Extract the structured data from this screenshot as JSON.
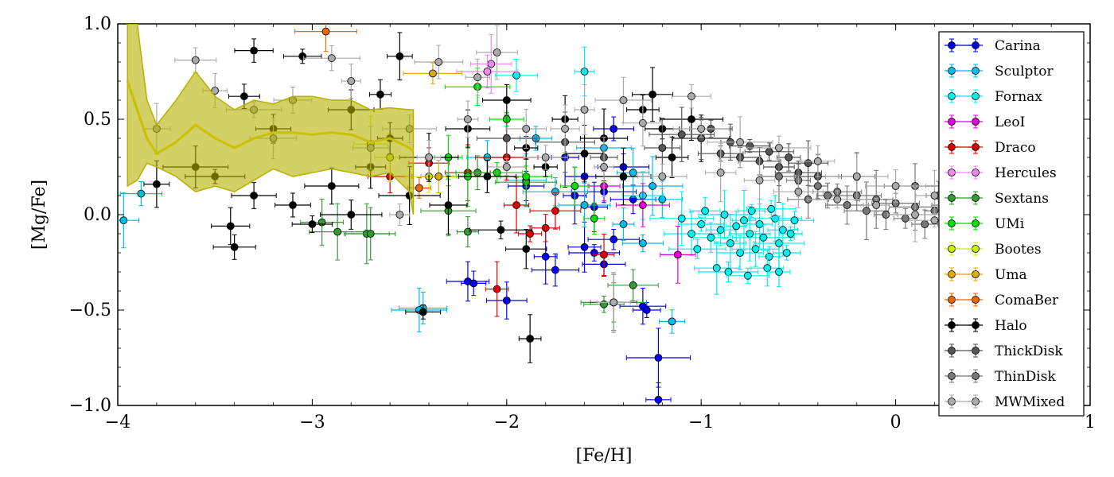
{
  "chart_data": {
    "type": "scatter",
    "title": "",
    "xlabel": "[Fe/H]",
    "ylabel": "[Mg/Fe]",
    "xlim": [
      -4,
      1
    ],
    "ylim": [
      -1.0,
      1.0
    ],
    "x_ticks": [
      -4,
      -3,
      -2,
      -1,
      0,
      1
    ],
    "x_tick_labels": [
      "−4",
      "−3",
      "−2",
      "−1",
      "0",
      "1"
    ],
    "y_ticks": [
      -1.0,
      -0.5,
      0.0,
      0.5,
      1.0
    ],
    "y_tick_labels": [
      "−1.0",
      "−0.5",
      "0.0",
      "0.5",
      "1.0"
    ],
    "grid": false,
    "legend_position": "right",
    "series": [
      {
        "name": "Carina",
        "color": "#0000ee",
        "points": [
          [
            -2.2,
            -0.35
          ],
          [
            -2.17,
            -0.36
          ],
          [
            -2.0,
            -0.45
          ],
          [
            -1.8,
            -0.22
          ],
          [
            -1.75,
            -0.29
          ],
          [
            -1.6,
            -0.17
          ],
          [
            -1.55,
            -0.2
          ],
          [
            -1.5,
            -0.26
          ],
          [
            -1.45,
            -0.13
          ],
          [
            -1.3,
            -0.48
          ],
          [
            -1.28,
            -0.5
          ],
          [
            -1.22,
            -0.75
          ],
          [
            -1.22,
            -0.97
          ],
          [
            -1.5,
            0.12
          ],
          [
            -1.6,
            0.2
          ],
          [
            -1.4,
            0.25
          ],
          [
            -1.7,
            0.3
          ],
          [
            -1.45,
            0.45
          ],
          [
            -1.35,
            0.08
          ],
          [
            -1.55,
            0.04
          ],
          [
            -1.9,
            0.15
          ],
          [
            -1.65,
            0.1
          ]
        ]
      },
      {
        "name": "Sculptor",
        "color": "#00bbee",
        "points": [
          [
            -3.97,
            -0.03
          ],
          [
            -3.88,
            0.11
          ],
          [
            -2.43,
            -0.49
          ],
          [
            -2.45,
            -0.5
          ],
          [
            -1.15,
            -0.56
          ],
          [
            -1.3,
            -0.15
          ],
          [
            -1.4,
            -0.05
          ],
          [
            -1.6,
            0.05
          ],
          [
            -1.75,
            0.12
          ],
          [
            -1.2,
            0.08
          ],
          [
            -1.9,
            0.18
          ],
          [
            -2.1,
            0.3
          ],
          [
            -1.85,
            0.4
          ],
          [
            -1.5,
            0.35
          ],
          [
            -1.35,
            0.22
          ],
          [
            -1.25,
            0.15
          ]
        ]
      },
      {
        "name": "Fornax",
        "color": "#00eeee",
        "points": [
          [
            -1.1,
            -0.02
          ],
          [
            -1.05,
            -0.1
          ],
          [
            -1.0,
            -0.05
          ],
          [
            -0.95,
            -0.12
          ],
          [
            -0.9,
            -0.08
          ],
          [
            -0.88,
            0.0
          ],
          [
            -0.85,
            -0.15
          ],
          [
            -0.82,
            -0.06
          ],
          [
            -0.8,
            -0.2
          ],
          [
            -0.78,
            -0.03
          ],
          [
            -0.75,
            -0.1
          ],
          [
            -0.72,
            -0.18
          ],
          [
            -0.7,
            -0.05
          ],
          [
            -0.68,
            -0.12
          ],
          [
            -0.65,
            -0.22
          ],
          [
            -0.62,
            -0.02
          ],
          [
            -0.6,
            -0.15
          ],
          [
            -0.58,
            -0.08
          ],
          [
            -0.56,
            -0.2
          ],
          [
            -0.54,
            -0.1
          ],
          [
            -0.92,
            -0.28
          ],
          [
            -0.86,
            -0.3
          ],
          [
            -0.76,
            -0.32
          ],
          [
            -0.66,
            -0.28
          ],
          [
            -0.6,
            -0.3
          ],
          [
            -0.98,
            0.02
          ],
          [
            -1.02,
            -0.18
          ],
          [
            -0.74,
            0.02
          ],
          [
            -0.64,
            0.03
          ],
          [
            -0.52,
            -0.03
          ],
          [
            -1.95,
            0.73
          ],
          [
            -1.6,
            0.75
          ],
          [
            -1.3,
            0.1
          ]
        ]
      },
      {
        "name": "LeoI",
        "color": "#dd00dd",
        "points": [
          [
            -1.12,
            -0.21
          ],
          [
            -1.3,
            0.05
          ],
          [
            -1.5,
            0.15
          ]
        ]
      },
      {
        "name": "Draco",
        "color": "#dd0000",
        "points": [
          [
            -2.05,
            -0.39
          ],
          [
            -1.88,
            -0.1
          ],
          [
            -1.8,
            -0.07
          ],
          [
            -1.5,
            -0.21
          ],
          [
            -2.4,
            0.27
          ],
          [
            -2.2,
            0.22
          ],
          [
            -2.6,
            0.2
          ],
          [
            -1.95,
            0.05
          ],
          [
            -1.75,
            0.02
          ],
          [
            -2.0,
            0.3
          ]
        ]
      },
      {
        "name": "Hercules",
        "color": "#ee88ee",
        "points": [
          [
            -2.08,
            0.79
          ],
          [
            -2.1,
            0.75
          ]
        ]
      },
      {
        "name": "Sextans",
        "color": "#339933",
        "points": [
          [
            -2.95,
            -0.04
          ],
          [
            -2.87,
            -0.09
          ],
          [
            -2.72,
            -0.1
          ],
          [
            -2.7,
            -0.1
          ],
          [
            -1.5,
            -0.47
          ],
          [
            -1.45,
            -0.46
          ],
          [
            -1.35,
            -0.37
          ],
          [
            -2.3,
            0.02
          ],
          [
            -2.15,
            0.22
          ],
          [
            -1.9,
            0.17
          ],
          [
            -2.2,
            -0.09
          ]
        ]
      },
      {
        "name": "UMi",
        "color": "#00dd00",
        "points": [
          [
            -2.2,
            0.2
          ],
          [
            -2.05,
            0.22
          ],
          [
            -1.9,
            0.2
          ],
          [
            -1.65,
            0.15
          ],
          [
            -2.0,
            0.5
          ],
          [
            -2.15,
            0.67
          ],
          [
            -1.55,
            -0.02
          ],
          [
            -2.3,
            0.3
          ]
        ]
      },
      {
        "name": "Bootes",
        "color": "#ccee00",
        "points": [
          [
            -2.6,
            0.3
          ],
          [
            -2.7,
            0.37
          ],
          [
            -2.4,
            0.2
          ]
        ]
      },
      {
        "name": "Uma",
        "color": "#ddaa00",
        "points": [
          [
            -2.38,
            0.74
          ],
          [
            -2.35,
            0.2
          ]
        ]
      },
      {
        "name": "ComaBer",
        "color": "#ee6600",
        "points": [
          [
            -2.93,
            0.96
          ],
          [
            -2.45,
            0.14
          ]
        ]
      },
      {
        "name": "Halo",
        "color": "#000000",
        "points": [
          [
            -3.4,
            -0.17
          ],
          [
            -3.42,
            -0.06
          ],
          [
            -2.43,
            -0.51
          ],
          [
            -1.88,
            -0.65
          ],
          [
            -1.9,
            -0.18
          ],
          [
            -2.03,
            -0.08
          ],
          [
            -3.3,
            0.86
          ],
          [
            -3.05,
            0.83
          ],
          [
            -2.55,
            0.83
          ],
          [
            -3.5,
            0.2
          ],
          [
            -3.3,
            0.1
          ],
          [
            -3.1,
            0.05
          ],
          [
            -2.9,
            0.15
          ],
          [
            -2.7,
            0.25
          ],
          [
            -2.5,
            0.1
          ],
          [
            -2.3,
            0.05
          ],
          [
            -2.1,
            0.2
          ],
          [
            -1.9,
            0.35
          ],
          [
            -1.7,
            0.5
          ],
          [
            -1.5,
            0.4
          ],
          [
            -1.3,
            0.55
          ],
          [
            -1.2,
            0.45
          ],
          [
            -1.05,
            0.5
          ],
          [
            -1.0,
            0.4
          ],
          [
            -1.15,
            0.3
          ],
          [
            -3.8,
            0.16
          ],
          [
            -3.6,
            0.25
          ],
          [
            -3.2,
            0.45
          ],
          [
            -2.8,
            0.55
          ],
          [
            -2.6,
            0.4
          ],
          [
            -2.4,
            0.3
          ],
          [
            -2.2,
            0.45
          ],
          [
            -2.0,
            0.6
          ],
          [
            -1.8,
            0.25
          ],
          [
            -1.6,
            0.32
          ],
          [
            -1.4,
            0.2
          ],
          [
            -1.25,
            0.63
          ],
          [
            -3.0,
            -0.05
          ],
          [
            -2.8,
            0.0
          ],
          [
            -3.35,
            0.62
          ],
          [
            -2.65,
            0.63
          ]
        ]
      },
      {
        "name": "ThickDisk",
        "color": "#555555",
        "points": [
          [
            -1.2,
            0.35
          ],
          [
            -1.0,
            0.4
          ],
          [
            -0.9,
            0.32
          ],
          [
            -0.8,
            0.3
          ],
          [
            -0.7,
            0.28
          ],
          [
            -0.6,
            0.25
          ],
          [
            -0.5,
            0.22
          ],
          [
            -0.4,
            0.2
          ],
          [
            -0.95,
            0.45
          ],
          [
            -0.85,
            0.38
          ],
          [
            -0.75,
            0.36
          ],
          [
            -0.65,
            0.33
          ],
          [
            -0.55,
            0.3
          ],
          [
            -0.45,
            0.27
          ],
          [
            -1.1,
            0.42
          ],
          [
            -1.5,
            0.3
          ],
          [
            -1.7,
            0.38
          ],
          [
            -2.0,
            0.4
          ],
          [
            -1.45,
            -0.46
          ]
        ]
      },
      {
        "name": "ThinDisk",
        "color": "#777777",
        "points": [
          [
            -0.4,
            0.15
          ],
          [
            -0.3,
            0.12
          ],
          [
            -0.2,
            0.1
          ],
          [
            -0.1,
            0.08
          ],
          [
            0.0,
            0.06
          ],
          [
            0.1,
            0.04
          ],
          [
            0.2,
            0.02
          ],
          [
            0.25,
            0.05
          ],
          [
            -0.35,
            0.1
          ],
          [
            -0.25,
            0.05
          ],
          [
            -0.15,
            0.02
          ],
          [
            -0.05,
            0.0
          ],
          [
            0.05,
            -0.02
          ],
          [
            0.15,
            -0.05
          ],
          [
            0.22,
            0.1
          ],
          [
            -0.5,
            0.18
          ],
          [
            -0.6,
            0.2
          ],
          [
            -0.45,
            0.08
          ],
          [
            0.1,
            0.15
          ],
          [
            -0.2,
            0.2
          ]
        ]
      },
      {
        "name": "MWMixed",
        "color": "#aaaaaa",
        "points": [
          [
            -3.6,
            0.81
          ],
          [
            -2.9,
            0.82
          ],
          [
            -2.35,
            0.8
          ],
          [
            -2.05,
            0.85
          ],
          [
            -2.15,
            0.72
          ],
          [
            -1.05,
            0.62
          ],
          [
            -1.4,
            0.6
          ],
          [
            -1.7,
            0.45
          ],
          [
            -3.5,
            0.65
          ],
          [
            -3.3,
            0.55
          ],
          [
            -3.1,
            0.6
          ],
          [
            -2.8,
            0.7
          ],
          [
            -2.5,
            0.45
          ],
          [
            -2.2,
            0.5
          ],
          [
            -1.9,
            0.45
          ],
          [
            -1.6,
            0.55
          ],
          [
            -1.3,
            0.48
          ],
          [
            -1.0,
            0.45
          ],
          [
            -0.8,
            0.38
          ],
          [
            -0.6,
            0.35
          ],
          [
            -0.4,
            0.28
          ],
          [
            -0.2,
            0.2
          ],
          [
            0.0,
            0.15
          ],
          [
            0.2,
            0.1
          ],
          [
            -3.8,
            0.45
          ],
          [
            -3.2,
            0.4
          ],
          [
            -2.7,
            0.35
          ],
          [
            -2.4,
            0.3
          ],
          [
            -2.0,
            0.25
          ],
          [
            -1.8,
            0.3
          ],
          [
            -1.5,
            0.25
          ],
          [
            -1.2,
            0.2
          ],
          [
            -0.9,
            0.22
          ],
          [
            -0.7,
            0.18
          ],
          [
            -0.5,
            0.12
          ],
          [
            -0.3,
            0.08
          ],
          [
            -0.1,
            0.05
          ],
          [
            0.1,
            0.0
          ],
          [
            0.2,
            -0.03
          ],
          [
            -2.55,
            0.0
          ],
          [
            -1.45,
            -0.46
          ]
        ]
      }
    ],
    "band": {
      "color": "#b5b000",
      "x": [
        -3.95,
        -3.9,
        -3.85,
        -3.8,
        -3.7,
        -3.6,
        -3.5,
        -3.4,
        -3.3,
        -3.2,
        -3.1,
        -3.0,
        -2.9,
        -2.8,
        -2.7,
        -2.6,
        -2.5,
        -2.48
      ],
      "mean": [
        0.7,
        0.55,
        0.4,
        0.32,
        0.38,
        0.47,
        0.4,
        0.35,
        0.4,
        0.43,
        0.43,
        0.42,
        0.43,
        0.42,
        0.38,
        0.4,
        0.35,
        0.33
      ],
      "upper": [
        1.0,
        1.0,
        0.6,
        0.47,
        0.6,
        0.75,
        0.62,
        0.55,
        0.6,
        0.58,
        0.62,
        0.62,
        0.6,
        0.6,
        0.55,
        0.56,
        0.55,
        0.55
      ],
      "lower": [
        0.15,
        0.18,
        0.27,
        0.25,
        0.2,
        0.12,
        0.15,
        0.12,
        0.18,
        0.24,
        0.2,
        0.22,
        0.24,
        0.22,
        0.2,
        0.22,
        0.12,
        0.0
      ]
    }
  }
}
